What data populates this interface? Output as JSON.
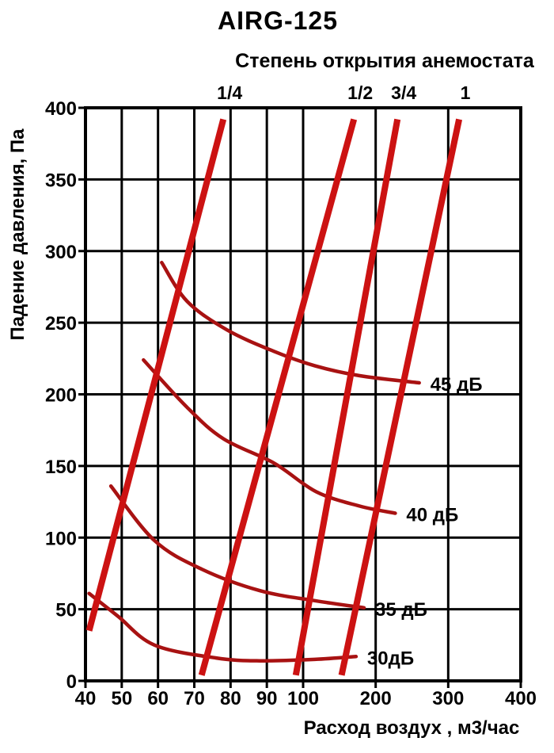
{
  "chart_data": {
    "type": "line",
    "title": "AIRG-125",
    "top_axis_title": "Степень открытия анемостата",
    "xlabel": "Расход воздух , м3/час",
    "ylabel": "Падение давления, Па",
    "xlim": [
      40,
      400
    ],
    "ylim": [
      0,
      400
    ],
    "x_ticks": [
      40,
      50,
      60,
      70,
      80,
      90,
      100,
      200,
      300,
      400
    ],
    "y_ticks": [
      0,
      50,
      100,
      150,
      200,
      250,
      300,
      350,
      400
    ],
    "x_scale": "pseudo-log: equal spacing per labeled step 40-100, double spacing per step 100-400",
    "grid": true,
    "legend_position": "inline-right",
    "colors": {
      "opening_lines": "#cc1212",
      "noise_curves": "#a81212",
      "grid": "#000000",
      "background": "#ffffff",
      "text": "#000000"
    },
    "opening_lines": [
      {
        "label": "1/4",
        "points": [
          [
            41,
            35
          ],
          [
            78,
            392
          ]
        ]
      },
      {
        "label": "1/2",
        "points": [
          [
            72,
            4
          ],
          [
            170,
            392
          ]
        ]
      },
      {
        "label": "3/4",
        "points": [
          [
            98,
            4
          ],
          [
            230,
            392
          ]
        ]
      },
      {
        "label": "1",
        "points": [
          [
            153,
            4
          ],
          [
            315,
            392
          ]
        ]
      }
    ],
    "noise_curves": [
      {
        "label": "30дБ",
        "points": [
          [
            41,
            61
          ],
          [
            49,
            45
          ],
          [
            59,
            25
          ],
          [
            76,
            16
          ],
          [
            88,
            14
          ],
          [
            116,
            15
          ],
          [
            173,
            17
          ]
        ]
      },
      {
        "label": "35 дБ",
        "points": [
          [
            47,
            136
          ],
          [
            59,
            98
          ],
          [
            72,
            78
          ],
          [
            88,
            63
          ],
          [
            116,
            56
          ],
          [
            184,
            51
          ]
        ]
      },
      {
        "label": "40 дБ",
        "points": [
          [
            56,
            224
          ],
          [
            68,
            191
          ],
          [
            78,
            169
          ],
          [
            92,
            152
          ],
          [
            118,
            132
          ],
          [
            178,
            122
          ],
          [
            227,
            117
          ]
        ]
      },
      {
        "label": "45 дБ",
        "points": [
          [
            61,
            292
          ],
          [
            68,
            265
          ],
          [
            79,
            245
          ],
          [
            92,
            230
          ],
          [
            116,
            220
          ],
          [
            178,
            213
          ],
          [
            260,
            208
          ]
        ]
      }
    ]
  }
}
